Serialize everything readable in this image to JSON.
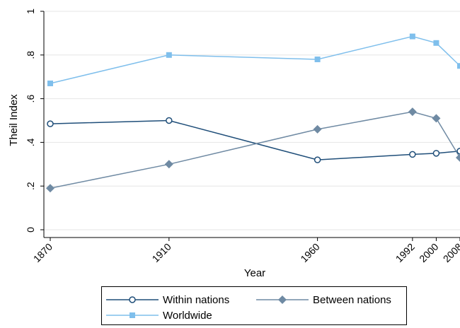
{
  "chart_data": {
    "type": "line",
    "title": "",
    "xlabel": "Year",
    "ylabel": "Theil Index",
    "x": [
      1870,
      1910,
      1960,
      1992,
      2000,
      2008
    ],
    "x_tick_labels": [
      "1870",
      "1910",
      "1960",
      "1992",
      "2000",
      "2008"
    ],
    "y_ticks": [
      0,
      0.2,
      0.4,
      0.6,
      0.8,
      1
    ],
    "y_tick_labels": [
      "0",
      ".2",
      ".4",
      ".6",
      ".8",
      "1"
    ],
    "ylim": [
      0,
      1
    ],
    "grid": true,
    "legend_position": "bottom",
    "series": [
      {
        "name": "Within nations",
        "values": [
          0.485,
          0.5,
          0.32,
          0.345,
          0.35,
          0.36
        ],
        "color": "#1f4e79",
        "marker": "circle-open"
      },
      {
        "name": "Between nations",
        "values": [
          0.19,
          0.3,
          0.46,
          0.54,
          0.51,
          0.33
        ],
        "color": "#6f8aa3",
        "marker": "diamond"
      },
      {
        "name": "Worldwide",
        "values": [
          0.67,
          0.8,
          0.78,
          0.885,
          0.855,
          0.75
        ],
        "color": "#7fbfec",
        "marker": "square"
      }
    ]
  }
}
